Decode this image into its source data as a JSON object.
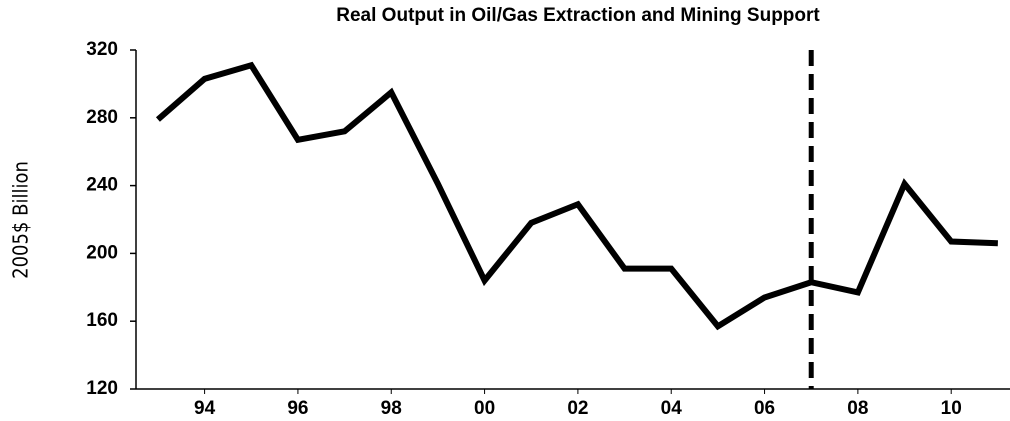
{
  "chart_data": {
    "type": "line",
    "title": "Real Output in Oil/Gas Extraction and Mining Support",
    "y_label": "2005$ Billion",
    "x": [
      1993,
      1994,
      1995,
      1996,
      1997,
      1998,
      1999,
      2000,
      2001,
      2002,
      2003,
      2004,
      2005,
      2006,
      2007,
      2008,
      2009,
      2010,
      2011
    ],
    "series": [
      {
        "name": "Real Output",
        "color": "#000000",
        "values": [
          279,
          303,
          311,
          267,
          272,
          295,
          241,
          184,
          218,
          229,
          191,
          191,
          157,
          174,
          183,
          177,
          241,
          207,
          206
        ]
      }
    ],
    "xlim": [
      1992.53,
      2011.26
    ],
    "xticks": [
      {
        "value": 1994,
        "label": "94"
      },
      {
        "value": 1996,
        "label": "96"
      },
      {
        "value": 1998,
        "label": "98"
      },
      {
        "value": 2000,
        "label": "00"
      },
      {
        "value": 2002,
        "label": "02"
      },
      {
        "value": 2004,
        "label": "04"
      },
      {
        "value": 2006,
        "label": "06"
      },
      {
        "value": 2008,
        "label": "08"
      },
      {
        "value": 2010,
        "label": "10"
      }
    ],
    "ylim": [
      120,
      320
    ],
    "yticks": [
      120,
      160,
      200,
      240,
      280,
      320
    ],
    "vlines": [
      2007
    ],
    "grid": false
  }
}
